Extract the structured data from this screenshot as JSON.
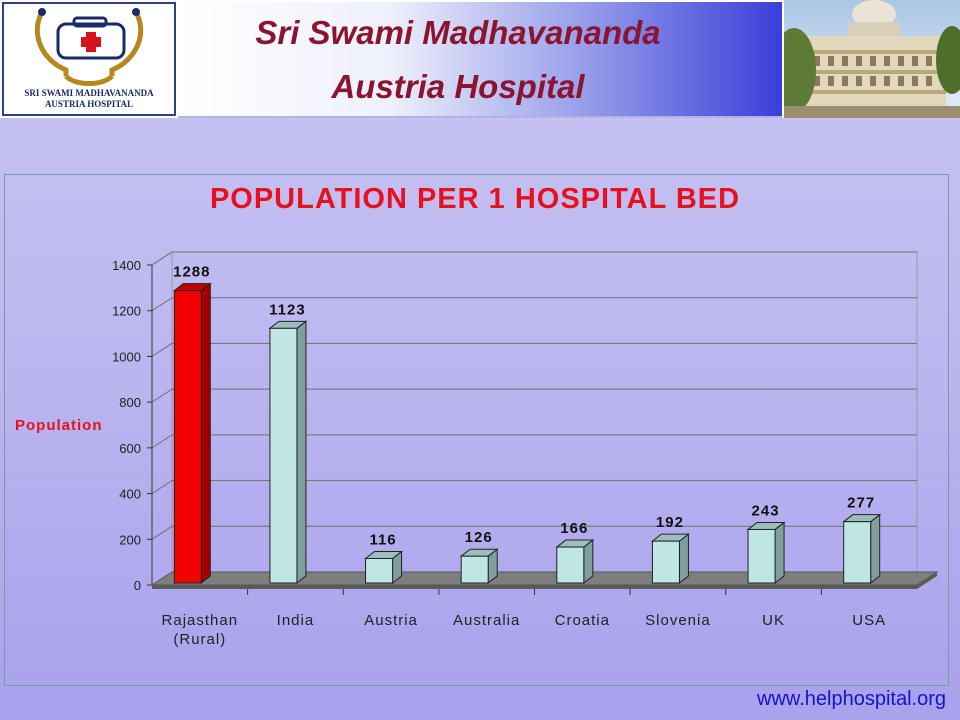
{
  "header": {
    "logo": {
      "line1": "SRI SWAMI MADHAVANANDA",
      "line2": "AUSTRIA HOSPITAL"
    },
    "title_line1": "Sri Swami Madhavananda",
    "title_line2": "Austria Hospital",
    "photo_icon": "hospital-building-photo"
  },
  "footer": {
    "url": "www.helphospital.org"
  },
  "colors": {
    "title": "#8b1530",
    "chart_title": "#e8101e",
    "highlight_bar": "#f20000",
    "bar": "#bfe6e4",
    "url": "#1515c8"
  },
  "chart_data": {
    "type": "bar",
    "title": "POPULATION PER 1 HOSPITAL BED",
    "ylabel": "Population",
    "xlabel": "",
    "categories": [
      [
        "Rajasthan",
        "(Rural)"
      ],
      [
        "India"
      ],
      [
        "Austria"
      ],
      [
        "Australia"
      ],
      [
        "Croatia"
      ],
      [
        "Slovenia"
      ],
      [
        "UK"
      ],
      [
        "USA"
      ]
    ],
    "values": [
      1288,
      1123,
      116,
      126,
      166,
      192,
      243,
      277
    ],
    "highlight_index": 0,
    "ylim": [
      0,
      1400
    ],
    "yticks": [
      0,
      200,
      400,
      600,
      800,
      1000,
      1200,
      1400
    ],
    "grid": true,
    "style": "3d"
  }
}
